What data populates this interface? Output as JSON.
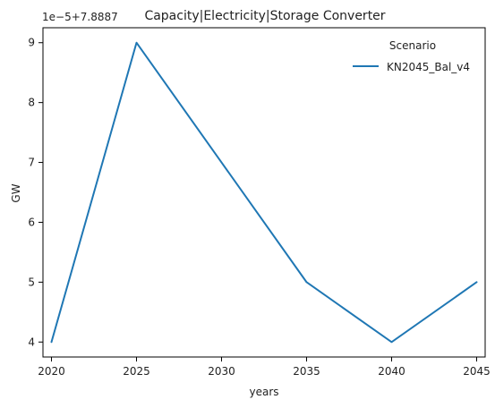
{
  "chart_data": {
    "type": "line",
    "title": "Capacity|Electricity|Storage Converter",
    "xlabel": "years",
    "ylabel": "GW",
    "y_offset_label": "1e−5+7.8887",
    "x_ticks": [
      2020,
      2025,
      2030,
      2035,
      2040,
      2045
    ],
    "y_ticks": [
      4,
      5,
      6,
      7,
      8,
      9
    ],
    "xlim": [
      2019.5,
      2045.5
    ],
    "ylim": [
      3.75,
      9.25
    ],
    "y_units_note": "values shown as (value - 7.8887) / 1e-5",
    "grid": false,
    "legend": {
      "title": "Scenario",
      "placement": "top-right"
    },
    "series": [
      {
        "name": "KN2045_Bal_v4",
        "color": "#1f77b4",
        "x": [
          2020,
          2025,
          2030,
          2035,
          2040,
          2045
        ],
        "y": [
          4,
          9,
          7,
          5,
          4,
          5
        ]
      }
    ]
  }
}
